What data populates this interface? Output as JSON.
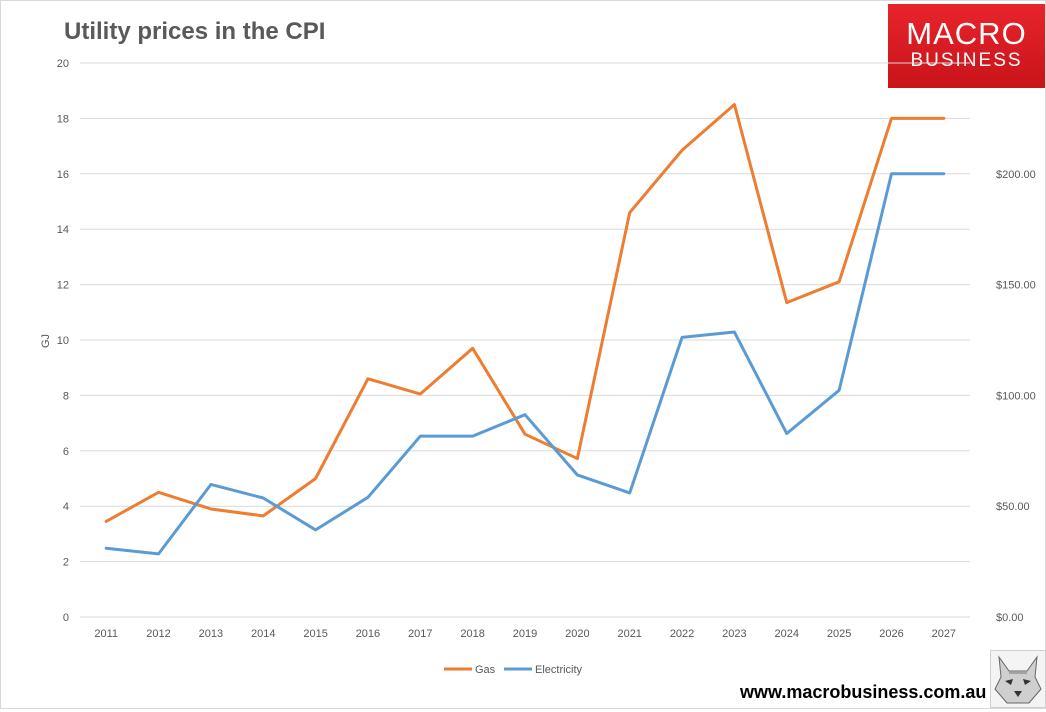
{
  "logo": {
    "line1": "MACRO",
    "line2": "BUSINESS"
  },
  "website": "www.macrobusiness.com.au",
  "chart_data": {
    "type": "line",
    "title": "Utility prices in the CPI",
    "xlabel": "",
    "ylabel": "GJ",
    "ylim": [
      0,
      20
    ],
    "yticks": [
      0,
      2,
      4,
      6,
      8,
      10,
      12,
      14,
      16,
      18,
      20
    ],
    "y2lim": [
      0,
      250
    ],
    "y2ticks": [
      "$0.00",
      "$50.00",
      "$100.00",
      "$150.00",
      "$200.00"
    ],
    "y2tick_values": [
      0,
      50,
      100,
      150,
      200
    ],
    "grid": true,
    "legend_position": "bottom",
    "categories": [
      "2011",
      "2012",
      "2013",
      "2014",
      "2015",
      "2016",
      "2017",
      "2018",
      "2019",
      "2020",
      "2021",
      "2022",
      "2023",
      "2024",
      "2025",
      "2026",
      "2027"
    ],
    "series": [
      {
        "name": "Gas",
        "axis": "left",
        "color": "#ed7d31",
        "values": [
          3.45,
          4.5,
          3.9,
          3.65,
          5.0,
          8.6,
          8.05,
          9.7,
          6.6,
          5.72,
          14.6,
          16.85,
          18.5,
          11.35,
          12.1,
          18.0,
          18.0
        ]
      },
      {
        "name": "Electricity",
        "axis": "right",
        "color": "#5b9bd5",
        "values": [
          31.0,
          28.5,
          59.8,
          53.7,
          39.3,
          54.0,
          81.6,
          81.6,
          91.3,
          64.1,
          56.0,
          126.2,
          128.6,
          82.8,
          102.3,
          200.0,
          200.0
        ]
      }
    ]
  }
}
